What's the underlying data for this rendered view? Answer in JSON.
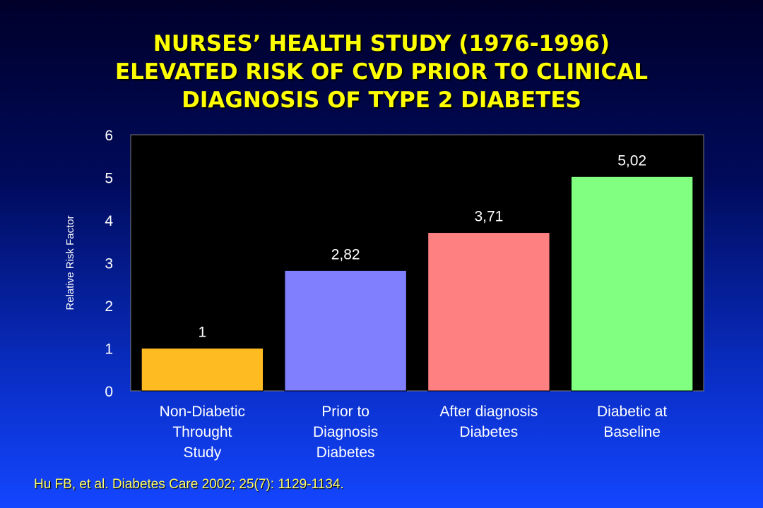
{
  "title_lines": [
    "NURSES’ HEALTH STUDY (1976-1996)",
    "ELEVATED RISK OF CVD PRIOR TO CLINICAL",
    "DIAGNOSIS OF TYPE 2 DIABETES"
  ],
  "citation": "Hu FB, et al. Diabetes Care 2002; 25(7): 1129-1134.",
  "colors": {
    "title": "#ffff00",
    "plot_background": "#000000",
    "axis_text": "#ffffff",
    "bars": [
      "#ffbb22",
      "#8080ff",
      "#ff8080",
      "#80ff80"
    ]
  },
  "chart_data": {
    "type": "bar",
    "title": "",
    "xlabel": "",
    "ylabel": "Relative Risk Factor",
    "ylim": [
      0,
      6
    ],
    "yticks": [
      0,
      1,
      2,
      3,
      4,
      5,
      6
    ],
    "grid": false,
    "legend": "none",
    "categories": [
      [
        "Non-Diabetic",
        "Throught",
        "Study"
      ],
      [
        "Prior to",
        "Diagnosis",
        "Diabetes"
      ],
      [
        "After diagnosis",
        "Diabetes"
      ],
      [
        "Diabetic at",
        "Baseline"
      ]
    ],
    "values": [
      1,
      2.82,
      3.71,
      5.02
    ],
    "data_labels": [
      "1",
      "2,82",
      "3,71",
      "5,02"
    ]
  }
}
